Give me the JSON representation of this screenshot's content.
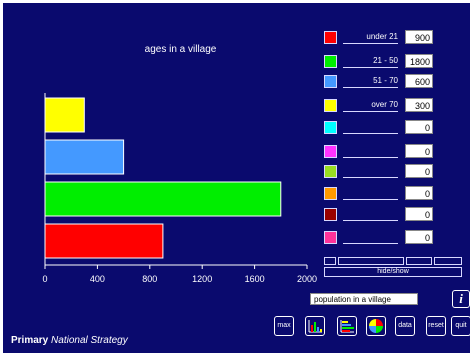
{
  "chart_data": {
    "type": "bar",
    "orientation": "horizontal",
    "title": "ages in a village",
    "categories": [
      "under 21",
      "21 - 50",
      "51 - 70",
      "over 70"
    ],
    "values": [
      900,
      1800,
      600,
      300
    ],
    "colors": [
      "#ff0000",
      "#00ee00",
      "#4499ff",
      "#ffff00"
    ],
    "xlim": [
      0,
      2000
    ],
    "xticks": [
      0,
      400,
      800,
      1200,
      1600,
      2000
    ],
    "xlabel": "",
    "ylabel": "",
    "grid": false
  },
  "table": {
    "rows": [
      {
        "label": "under 21",
        "value": "900",
        "color": "#ff0000"
      },
      {
        "label": "21 - 50",
        "value": "1800",
        "color": "#00ee00"
      },
      {
        "label": "51 - 70",
        "value": "600",
        "color": "#4499ff"
      },
      {
        "label": "over 70",
        "value": "300",
        "color": "#ffff00"
      },
      {
        "label": "",
        "value": "0",
        "color": "#00ffff"
      },
      {
        "label": "",
        "value": "0",
        "color": "#ff33ff"
      },
      {
        "label": "",
        "value": "0",
        "color": "#99dd22"
      },
      {
        "label": "",
        "value": "0",
        "color": "#ff9900"
      },
      {
        "label": "",
        "value": "0",
        "color": "#990000"
      },
      {
        "label": "",
        "value": "0",
        "color": "#ff3399"
      }
    ],
    "hide_show_label": "hide/show"
  },
  "population_label": "population in a village",
  "info_icon": "i",
  "tools": {
    "max": "max",
    "bar_chart_icon": "bar-chart-icon",
    "sorted_bar_icon": "sorted-bar-chart-icon",
    "pie_chart_icon": "pie-chart-icon",
    "data": "data",
    "reset": "reset",
    "quit": "quit"
  },
  "brand": {
    "primary": "Primary",
    "strategy": "National Strategy"
  }
}
